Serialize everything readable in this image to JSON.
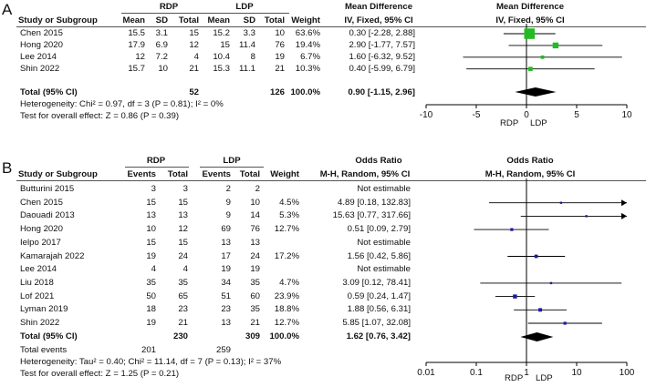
{
  "panel_a": {
    "letter": "A",
    "group1": "RDP",
    "group2": "LDP",
    "header": {
      "study": "Study or Subgroup",
      "mean1": "Mean",
      "sd1": "SD",
      "total1": "Total",
      "mean2": "Mean",
      "sd2": "SD",
      "total2": "Total",
      "weight": "Weight",
      "effect_title": "Mean Difference",
      "effect_sub": "IV, Fixed, 95% CI",
      "plot_title": "Mean Difference",
      "plot_sub": "IV, Fixed, 95% CI"
    },
    "rows": [
      {
        "study": "Chen 2015",
        "mean1": "15.5",
        "sd1": "3.1",
        "total1": "15",
        "mean2": "15.2",
        "sd2": "3.3",
        "total2": "10",
        "weight": "63.6%",
        "ci": "0.30 [-2.28, 2.88]"
      },
      {
        "study": "Hong 2020",
        "mean1": "17.9",
        "sd1": "6.9",
        "total1": "12",
        "mean2": "15",
        "sd2": "11.4",
        "total2": "76",
        "weight": "19.4%",
        "ci": "2.90 [-1.77, 7.57]"
      },
      {
        "study": "Lee 2014",
        "mean1": "12",
        "sd1": "7.2",
        "total1": "4",
        "mean2": "10.4",
        "sd2": "8",
        "total2": "19",
        "weight": "6.7%",
        "ci": "1.60 [-6.32, 9.52]"
      },
      {
        "study": "Shin 2022",
        "mean1": "15.7",
        "sd1": "10",
        "total1": "21",
        "mean2": "15.3",
        "sd2": "11.1",
        "total2": "21",
        "weight": "10.3%",
        "ci": "0.40 [-5.99, 6.79]"
      }
    ],
    "total": {
      "label": "Total (95% CI)",
      "total1": "52",
      "total2": "126",
      "weight": "100.0%",
      "ci": "0.90 [-1.15, 2.96]"
    },
    "heterogeneity": "Heterogeneity: Chi² = 0.97, df = 3 (P = 0.81); I² = 0%",
    "overall": "Test for overall effect: Z = 0.86 (P = 0.39)",
    "favours_left": "RDP",
    "favours_right": "LDP"
  },
  "panel_b": {
    "letter": "B",
    "group1": "RDP",
    "group2": "LDP",
    "header": {
      "study": "Study or Subgroup",
      "events1": "Events",
      "total1": "Total",
      "events2": "Events",
      "total2": "Total",
      "weight": "Weight",
      "effect_title": "Odds Ratio",
      "effect_sub": "M-H, Random, 95% CI",
      "plot_title": "Odds Ratio",
      "plot_sub": "M-H, Random, 95% CI"
    },
    "rows": [
      {
        "study": "Butturini 2015",
        "events1": "3",
        "total1": "3",
        "events2": "2",
        "total2": "2",
        "weight": "",
        "ci": "Not estimable"
      },
      {
        "study": "Chen 2015",
        "events1": "15",
        "total1": "15",
        "events2": "9",
        "total2": "10",
        "weight": "4.5%",
        "ci": "4.89 [0.18, 132.83]"
      },
      {
        "study": "Daouadi 2013",
        "events1": "13",
        "total1": "13",
        "events2": "9",
        "total2": "14",
        "weight": "5.3%",
        "ci": "15.63 [0.77, 317.66]"
      },
      {
        "study": "Hong 2020",
        "events1": "10",
        "total1": "12",
        "events2": "69",
        "total2": "76",
        "weight": "12.7%",
        "ci": "0.51 [0.09, 2.79]"
      },
      {
        "study": "Ielpo 2017",
        "events1": "15",
        "total1": "15",
        "events2": "13",
        "total2": "13",
        "weight": "",
        "ci": "Not estimable"
      },
      {
        "study": "Kamarajah 2022",
        "events1": "19",
        "total1": "24",
        "events2": "17",
        "total2": "24",
        "weight": "17.2%",
        "ci": "1.56 [0.42, 5.86]"
      },
      {
        "study": "Lee 2014",
        "events1": "4",
        "total1": "4",
        "events2": "19",
        "total2": "19",
        "weight": "",
        "ci": "Not estimable"
      },
      {
        "study": "Liu 2018",
        "events1": "35",
        "total1": "35",
        "events2": "34",
        "total2": "35",
        "weight": "4.7%",
        "ci": "3.09 [0.12, 78.41]"
      },
      {
        "study": "Lof 2021",
        "events1": "50",
        "total1": "65",
        "events2": "51",
        "total2": "60",
        "weight": "23.9%",
        "ci": "0.59 [0.24, 1.47]"
      },
      {
        "study": "Lyman 2019",
        "events1": "18",
        "total1": "23",
        "events2": "23",
        "total2": "35",
        "weight": "18.8%",
        "ci": "1.88 [0.56, 6.31]"
      },
      {
        "study": "Shin 2022",
        "events1": "19",
        "total1": "21",
        "events2": "13",
        "total2": "21",
        "weight": "12.7%",
        "ci": "5.85 [1.07, 32.08]"
      }
    ],
    "total": {
      "label": "Total (95% CI)",
      "total1": "230",
      "total2": "309",
      "weight": "100.0%",
      "ci": "1.62 [0.76, 3.42]"
    },
    "total_events": {
      "label": "Total events",
      "events1": "201",
      "events2": "259"
    },
    "heterogeneity": "Heterogeneity: Tau² = 0.40; Chi² = 11.14, df = 7 (P = 0.13); I² = 37%",
    "overall": "Test for overall effect: Z = 1.25 (P = 0.21)",
    "favours_left": "RDP",
    "favours_right": "LDP"
  },
  "chart_data": [
    {
      "type": "scatter",
      "scale": "linear",
      "xlim": [
        -10,
        10
      ],
      "ticks": [
        -10,
        -5,
        0,
        5,
        10
      ],
      "reference": 0,
      "point_color": "#22bb22",
      "studies": [
        {
          "name": "Chen 2015",
          "est": 0.3,
          "lo": -2.28,
          "hi": 2.88,
          "weight": 63.6
        },
        {
          "name": "Hong 2020",
          "est": 2.9,
          "lo": -1.77,
          "hi": 7.57,
          "weight": 19.4
        },
        {
          "name": "Lee 2014",
          "est": 1.6,
          "lo": -6.32,
          "hi": 9.52,
          "weight": 6.7
        },
        {
          "name": "Shin 2022",
          "est": 0.4,
          "lo": -5.99,
          "hi": 6.79,
          "weight": 10.3
        }
      ],
      "pooled": {
        "est": 0.9,
        "lo": -1.15,
        "hi": 2.96
      }
    },
    {
      "type": "scatter",
      "scale": "log",
      "xlim": [
        0.01,
        100
      ],
      "ticks": [
        0.01,
        0.1,
        1,
        10,
        100
      ],
      "tick_labels": [
        "0.01",
        "0.1",
        "1",
        "10",
        "100"
      ],
      "reference": 1,
      "point_color": "#1a1aaa",
      "studies": [
        {
          "name": "Butturini 2015",
          "est": null
        },
        {
          "name": "Chen 2015",
          "est": 4.89,
          "lo": 0.18,
          "hi": 132.83,
          "weight": 4.5
        },
        {
          "name": "Daouadi 2013",
          "est": 15.63,
          "lo": 0.77,
          "hi": 317.66,
          "weight": 5.3
        },
        {
          "name": "Hong 2020",
          "est": 0.51,
          "lo": 0.09,
          "hi": 2.79,
          "weight": 12.7
        },
        {
          "name": "Ielpo 2017",
          "est": null
        },
        {
          "name": "Kamarajah 2022",
          "est": 1.56,
          "lo": 0.42,
          "hi": 5.86,
          "weight": 17.2
        },
        {
          "name": "Lee 2014",
          "est": null
        },
        {
          "name": "Liu 2018",
          "est": 3.09,
          "lo": 0.12,
          "hi": 78.41,
          "weight": 4.7
        },
        {
          "name": "Lof 2021",
          "est": 0.59,
          "lo": 0.24,
          "hi": 1.47,
          "weight": 23.9
        },
        {
          "name": "Lyman 2019",
          "est": 1.88,
          "lo": 0.56,
          "hi": 6.31,
          "weight": 18.8
        },
        {
          "name": "Shin 2022",
          "est": 5.85,
          "lo": 1.07,
          "hi": 32.08,
          "weight": 12.7
        }
      ],
      "pooled": {
        "est": 1.62,
        "lo": 0.76,
        "hi": 3.42
      }
    }
  ]
}
